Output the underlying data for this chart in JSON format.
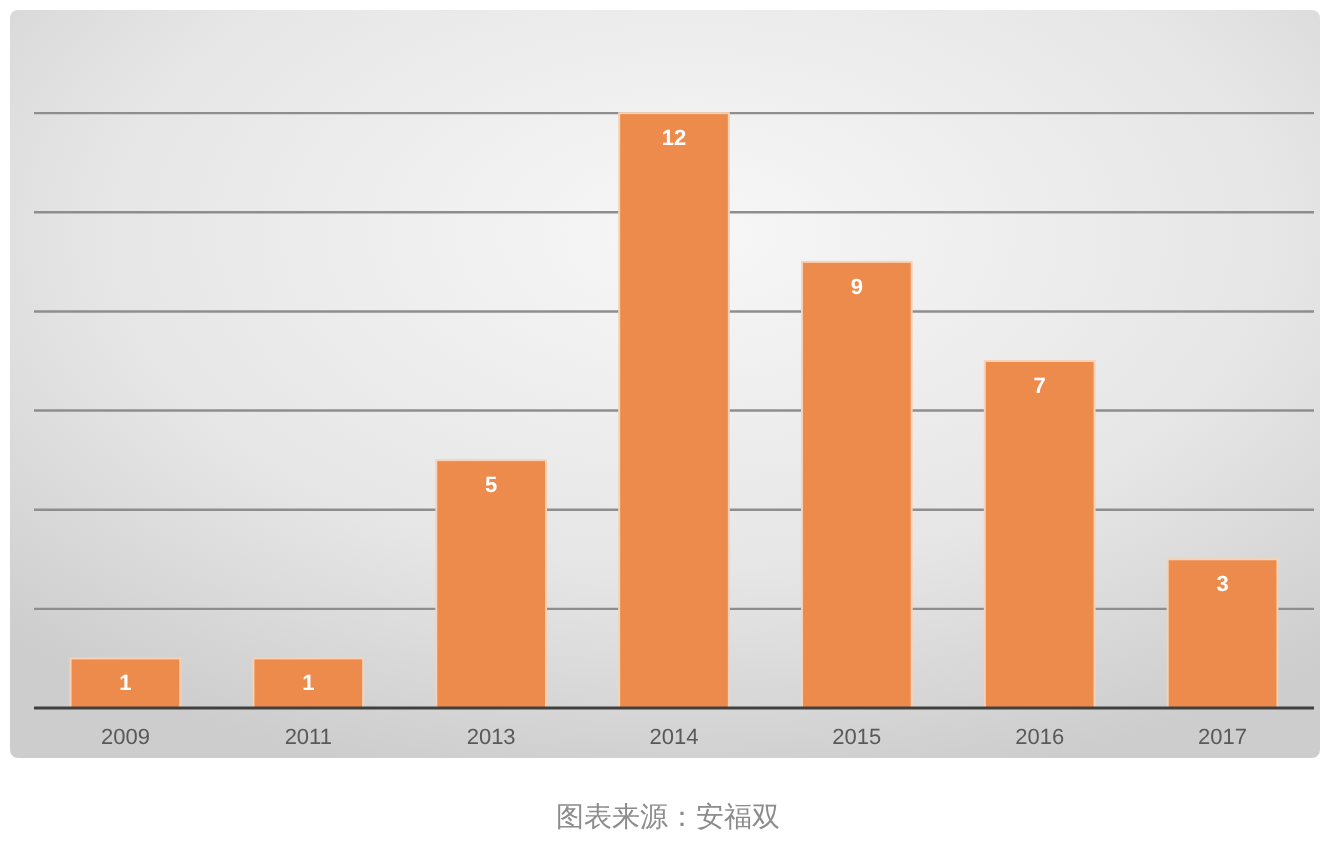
{
  "chart_data": {
    "type": "bar",
    "categories": [
      "2009",
      "2011",
      "2013",
      "2014",
      "2015",
      "2016",
      "2017"
    ],
    "values": [
      1,
      1,
      5,
      12,
      9,
      7,
      3
    ],
    "color": "#ed8b4c",
    "ylim": [
      0,
      14
    ],
    "yticks": [
      {
        "value": 0,
        "label": null
      },
      {
        "value": 2,
        "label": null
      },
      {
        "value": 4,
        "label": null
      },
      {
        "value": 6,
        "label": null
      },
      {
        "value": 8,
        "label": null
      },
      {
        "value": 10,
        "label": null
      },
      {
        "value": 12,
        "label": null
      }
    ],
    "tick_labels": "x",
    "grid": "y",
    "data_labels": true,
    "annotations": [
      "图表来源：安福双"
    ]
  }
}
